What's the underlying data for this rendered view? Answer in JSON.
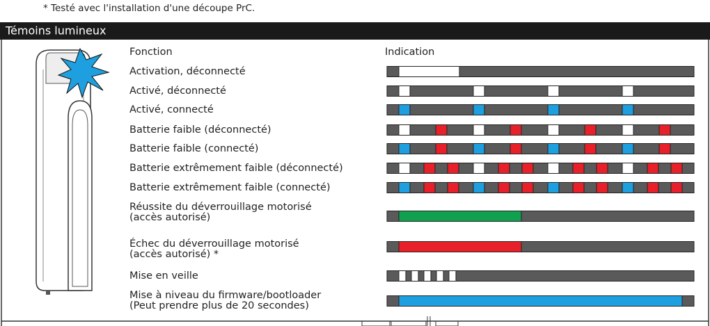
{
  "footnote": "* Testé avec l'installation d'une découpe PrC.",
  "section_title": "Témoins lumineux",
  "table": {
    "headers": [
      "Fonction",
      "Indication"
    ],
    "rows": [
      {
        "label": [
          "Activation, déconnecté"
        ]
      },
      {
        "label": [
          "Activé, déconnecté"
        ]
      },
      {
        "label": [
          "Activé, connecté"
        ]
      },
      {
        "label": [
          "Batterie faible (déconnecté)"
        ]
      },
      {
        "label": [
          "Batterie faible (connecté)"
        ]
      },
      {
        "label": [
          "Batterie extrêmement faible (déconnecté)"
        ]
      },
      {
        "label": [
          "Batterie extrêmement faible (connecté)"
        ]
      },
      {
        "label": [
          "Réussite du déverrouillage motorisé",
          "(accès autorisé)"
        ]
      },
      {
        "label": [
          "Échec du déverrouillage motorisé",
          "(accès autorisé) *"
        ]
      },
      {
        "label": [
          "Mise en veille"
        ]
      },
      {
        "label": [
          "Mise à niveau du firmware/bootloader",
          "(Peut prendre plus de 20 secondes)"
        ]
      }
    ]
  }
}
